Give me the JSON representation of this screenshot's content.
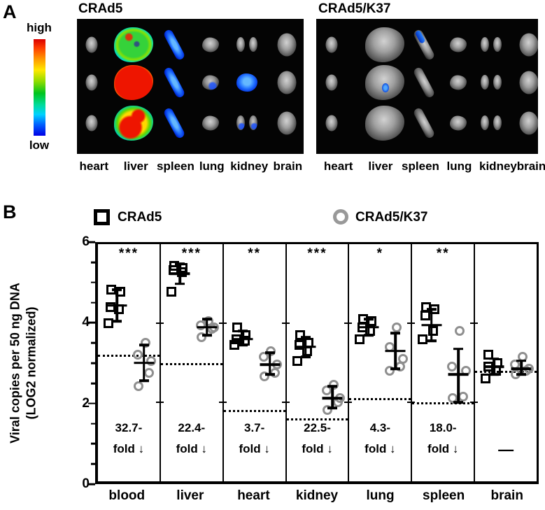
{
  "panel_a": {
    "label": "A",
    "colorbar": {
      "high_label": "high",
      "low_label": "low"
    },
    "images": [
      {
        "title": "CRAd5",
        "organ_labels": [
          "heart",
          "liver",
          "spleen",
          "lung",
          "kidney",
          "brain"
        ],
        "grid": [
          [
            "gray",
            "green",
            "blue",
            "gray",
            "gray",
            "gray"
          ],
          [
            "gray",
            "red",
            "blue",
            "gray-blue",
            "blue",
            "gray"
          ],
          [
            "gray",
            "red-green",
            "blue",
            "gray",
            "gray-blue",
            "gray"
          ]
        ]
      },
      {
        "title": "CRAd5/K37",
        "organ_labels": [
          "heart",
          "liver",
          "spleen",
          "lung",
          "kidney",
          "brain"
        ],
        "grid": [
          [
            "gray",
            "gray",
            "blue-streak",
            "gray",
            "gray",
            "gray"
          ],
          [
            "gray",
            "blue-spot",
            "gray",
            "gray",
            "gray",
            "gray"
          ],
          [
            "gray",
            "gray",
            "gray",
            "gray",
            "gray",
            "gray"
          ]
        ]
      }
    ]
  },
  "panel_b": {
    "label": "B",
    "legend": [
      {
        "label": "CRAd5",
        "marker": "square",
        "color": "#000000"
      },
      {
        "label": "CRAd5/K37",
        "marker": "circle",
        "color": "#999999"
      }
    ]
  },
  "chart_data": {
    "type": "scatter",
    "ylabel_line1": "Viral copies per 50 ng DNA",
    "ylabel_line2": "(LOG2 normalized)",
    "ylim": [
      0,
      6
    ],
    "yticks": [
      0,
      2,
      4,
      6
    ],
    "minor_tick_step": 0.5,
    "grid": false,
    "legend_position": "top",
    "categories": [
      "blood",
      "liver",
      "heart",
      "kidney",
      "lung",
      "spleen",
      "brain"
    ],
    "series_names": [
      "CRAd5",
      "CRAd5/K37"
    ],
    "marker_colors": {
      "CRAd5": "#000000",
      "CRAd5/K37": "#999999"
    },
    "columns": [
      {
        "category": "blood",
        "significance": "***",
        "baseline": 3.2,
        "fold_line1": "32.7-",
        "fold_line2": "fold ↓",
        "no_fold_dash": "",
        "crad5": {
          "points": [
            4.85,
            4.8,
            4.4,
            4.35,
            4.0
          ],
          "mean": 4.45,
          "err_lo": 4.05,
          "err_hi": 4.85
        },
        "crad5_k37": {
          "points": [
            3.5,
            3.2,
            3.05,
            2.75,
            2.4
          ],
          "mean": 3.0,
          "err_lo": 2.55,
          "err_hi": 3.45
        }
      },
      {
        "category": "liver",
        "significance": "***",
        "baseline": 3.0,
        "fold_line1": "22.4-",
        "fold_line2": "fold ↓",
        "no_fold_dash": "",
        "crad5": {
          "points": [
            5.45,
            5.4,
            5.35,
            5.3,
            4.8
          ],
          "mean": 5.25,
          "err_lo": 5.0,
          "err_hi": 5.5
        },
        "crad5_k37": {
          "points": [
            4.05,
            3.95,
            3.9,
            3.85,
            3.65
          ],
          "mean": 3.9,
          "err_lo": 3.7,
          "err_hi": 4.1
        }
      },
      {
        "category": "heart",
        "significance": "**",
        "baseline": 1.8,
        "fold_line1": "3.7-",
        "fold_line2": "fold ↓",
        "no_fold_dash": "",
        "crad5": {
          "points": [
            3.9,
            3.7,
            3.6,
            3.55,
            3.45
          ],
          "mean": 3.6,
          "err_lo": 3.45,
          "err_hi": 3.8
        },
        "crad5_k37": {
          "points": [
            3.3,
            3.15,
            2.95,
            2.75,
            2.65
          ],
          "mean": 2.95,
          "err_lo": 2.7,
          "err_hi": 3.25
        }
      },
      {
        "category": "kidney",
        "significance": "***",
        "baseline": 1.6,
        "fold_line1": "22.5-",
        "fold_line2": "fold ↓",
        "no_fold_dash": "",
        "crad5": {
          "points": [
            3.7,
            3.5,
            3.45,
            3.3,
            3.05
          ],
          "mean": 3.4,
          "err_lo": 3.15,
          "err_hi": 3.65
        },
        "crad5_k37": {
          "points": [
            2.45,
            2.3,
            2.1,
            2.0,
            1.8
          ],
          "mean": 2.1,
          "err_lo": 1.85,
          "err_hi": 2.4
        }
      },
      {
        "category": "lung",
        "significance": "*",
        "baseline": 2.1,
        "fold_line1": "4.3-",
        "fold_line2": "fold ↓",
        "no_fold_dash": "",
        "crad5": {
          "points": [
            4.1,
            4.05,
            3.9,
            3.8,
            3.6
          ],
          "mean": 3.9,
          "err_lo": 3.7,
          "err_hi": 4.1
        },
        "crad5_k37": {
          "points": [
            3.9,
            3.4,
            3.1,
            2.9,
            2.8
          ],
          "mean": 3.3,
          "err_lo": 2.85,
          "err_hi": 3.75
        }
      },
      {
        "category": "spleen",
        "significance": "**",
        "baseline": 2.0,
        "fold_line1": "18.0-",
        "fold_line2": "fold ↓",
        "no_fold_dash": "",
        "crad5": {
          "points": [
            4.4,
            4.35,
            4.2,
            3.8,
            3.6
          ],
          "mean": 3.95,
          "err_lo": 3.55,
          "err_hi": 4.35
        },
        "crad5_k37": {
          "points": [
            3.8,
            2.9,
            2.8,
            2.15,
            2.1
          ],
          "mean": 2.7,
          "err_lo": 2.0,
          "err_hi": 3.35
        }
      },
      {
        "category": "brain",
        "significance": "",
        "baseline": 2.8,
        "fold_line1": "",
        "fold_line2": "",
        "no_fold_dash": "—",
        "crad5": {
          "points": [
            3.2,
            3.0,
            2.9,
            2.8,
            2.6
          ],
          "mean": 2.9,
          "err_lo": 2.7,
          "err_hi": 3.1
        },
        "crad5_k37": {
          "points": [
            3.15,
            2.95,
            2.85,
            2.8,
            2.7
          ],
          "mean": 2.85,
          "err_lo": 2.7,
          "err_hi": 3.05
        }
      }
    ]
  }
}
